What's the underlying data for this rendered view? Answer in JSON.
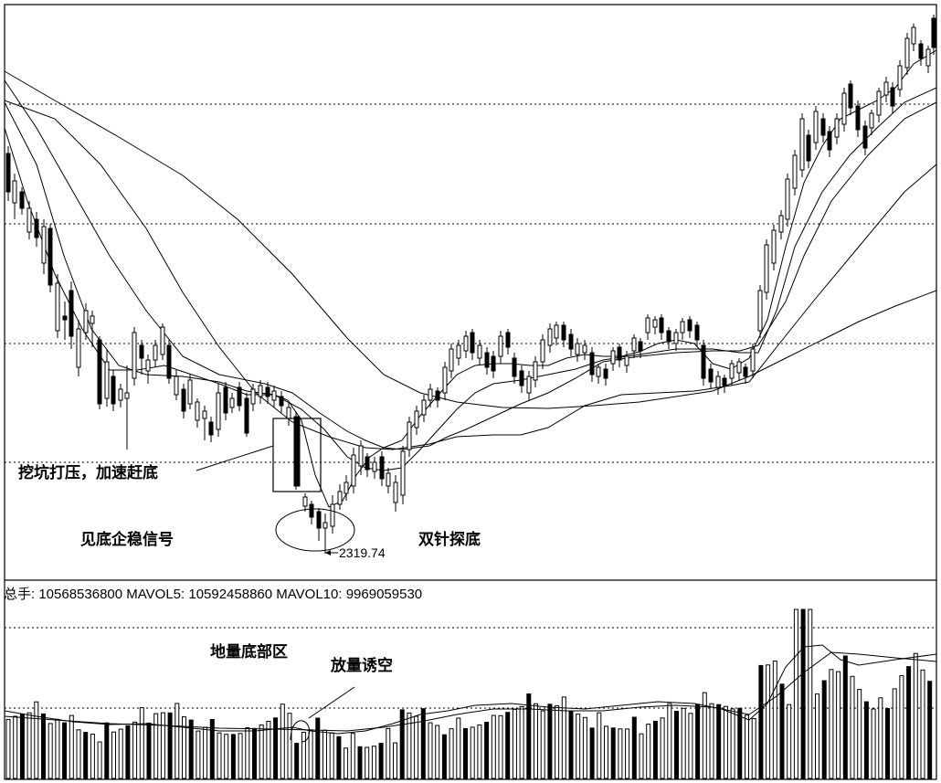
{
  "chart_data": {
    "type": "candlestick",
    "annotations": {
      "pit_pressure": "挖坑打压，加速赶底",
      "bottom_signal": "见底企稳信号",
      "double_needle": "双针探底",
      "low_price": "2319.74",
      "ground_volume": "地量底部区",
      "volume_lure": "放量诱空"
    },
    "volume_info": "总手: 10568536800 MAVOL5: 10592458860 MAVOL10: 9969059530",
    "low_value": 2319.74,
    "grid": true,
    "colors": {
      "line": "#000000",
      "grid": "#000000",
      "background": "#ffffff"
    }
  }
}
